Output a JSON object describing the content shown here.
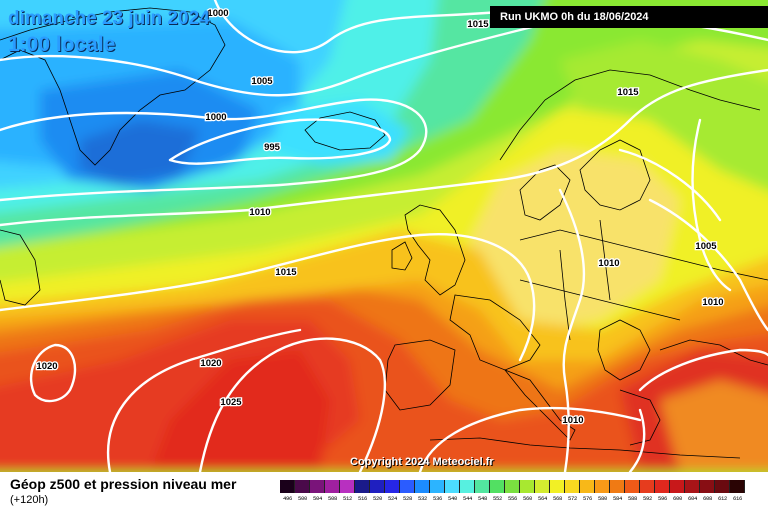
{
  "header": {
    "date": "dimanche 23 juin 2024",
    "time": "1:00 locale",
    "run": "Run UKMO 0h du 18/06/2024"
  },
  "copyright": "Copyright 2024 Meteociel.fr",
  "footer": {
    "title": "Géop z500 et pression niveau mer",
    "subtitle": "(+120h)"
  },
  "legend": {
    "unit_note": "",
    "values": [
      "496",
      "500",
      "504",
      "508",
      "512",
      "516",
      "520",
      "524",
      "528",
      "532",
      "536",
      "540",
      "544",
      "548",
      "552",
      "556",
      "560",
      "564",
      "568",
      "572",
      "576",
      "580",
      "584",
      "588",
      "592",
      "596",
      "600",
      "604",
      "608",
      "612",
      "616"
    ],
    "colors": [
      "#1a001a",
      "#4a0a4a",
      "#7a147a",
      "#a020a0",
      "#b830c0",
      "#1a1a8a",
      "#1f1fc0",
      "#2626e6",
      "#2b5cff",
      "#1c8cff",
      "#2cb4ff",
      "#4cdcff",
      "#57f0e0",
      "#52e6a0",
      "#52e062",
      "#7ae040",
      "#a8e830",
      "#d4ec30",
      "#f2f025",
      "#f8d820",
      "#f8b818",
      "#f89a18",
      "#f07a14",
      "#f05a18",
      "#e63c1e",
      "#e0281e",
      "#c8181a",
      "#a81418",
      "#880e14",
      "#6a0a10",
      "#2a0404"
    ]
  },
  "isobars": [
    {
      "label": "1000",
      "row": "top"
    },
    {
      "label": "1015",
      "row": "top-right"
    },
    {
      "label": "1005",
      "row": "greenland"
    },
    {
      "label": "1000",
      "row": "greenland"
    },
    {
      "label": "995",
      "row": "low"
    },
    {
      "label": "1015",
      "row": "scandinavia"
    },
    {
      "label": "1010",
      "row": "atlantic"
    },
    {
      "label": "1015",
      "row": "atlantic"
    },
    {
      "label": "1005",
      "row": "east"
    },
    {
      "label": "1010",
      "row": "central-europe"
    },
    {
      "label": "1010",
      "row": "east"
    },
    {
      "label": "1020",
      "row": "west"
    },
    {
      "label": "1020",
      "row": "atlantic-south"
    },
    {
      "label": "1025",
      "row": "atlantic-south"
    },
    {
      "label": "1010",
      "row": "mediterranean"
    }
  ]
}
